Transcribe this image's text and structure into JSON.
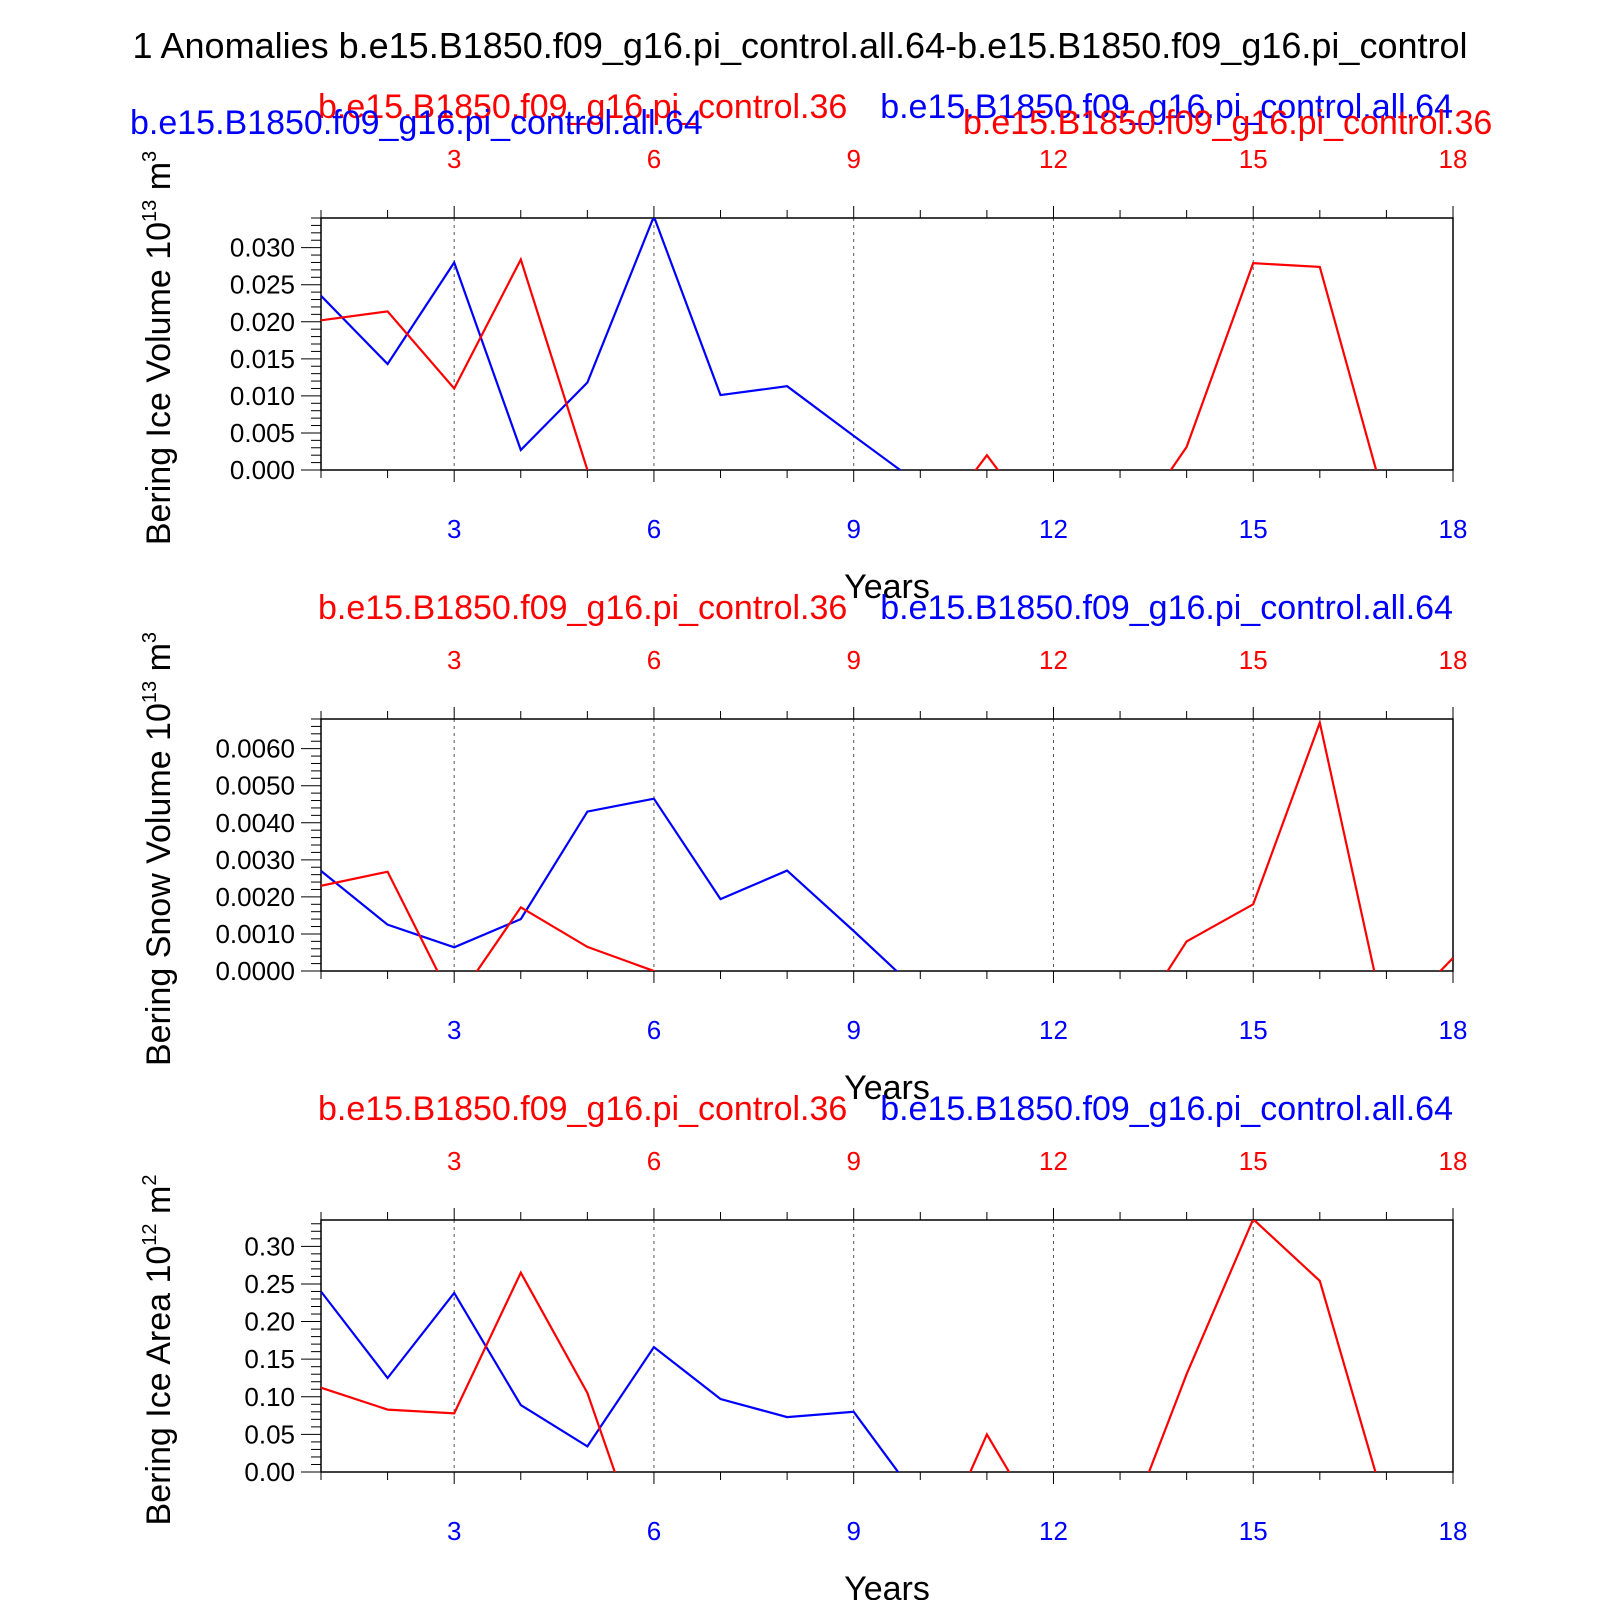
{
  "figure": {
    "title": "1 Anomalies b.e15.B1850.f09_g16.pi_control.all.64-b.e15.B1850.f09_g16.pi_control"
  },
  "colors": {
    "series_a": "#0000ff",
    "series_b": "#ff0000",
    "axis": "#000000",
    "grid": "#555555"
  },
  "chart_data": [
    {
      "type": "line",
      "ylabel": "Bering Ice Volume 10",
      "ylabel_exp": "13",
      "ylabel_unit": "m",
      "ylabel_unit_exp": "3",
      "xlabel": "Years",
      "xlim": [
        1,
        18
      ],
      "ylim": [
        0,
        0.034
      ],
      "yticks": [
        "0.000",
        "0.005",
        "0.010",
        "0.015",
        "0.020",
        "0.025",
        "0.030"
      ],
      "ytick_values": [
        0,
        0.005,
        0.01,
        0.015,
        0.02,
        0.025,
        0.03
      ],
      "xticks": [
        "3",
        "6",
        "9",
        "12",
        "15",
        "18"
      ],
      "xtick_values": [
        3,
        6,
        9,
        12,
        15,
        18
      ],
      "grid": "dashed vertical at x ticks",
      "top_labels": {
        "red_left": "b.e15.B1850.f09_g16.pi_control.36",
        "blue_right": "b.e15.B1850.f09_g16.pi_control.all.64",
        "blue_left": "b.e15.B1850.f09_g16.pi_control.all.64",
        "red_right": "b.e15.B1850.f09_g16.pi_control.36"
      },
      "series": [
        {
          "color": "blue",
          "x": [
            1,
            2,
            3,
            4,
            5,
            6,
            7,
            8,
            9,
            10,
            11,
            12,
            13,
            14,
            15,
            16,
            17,
            18
          ],
          "y": [
            0.0235,
            0.0143,
            0.028,
            0.0027,
            0.0118,
            0.0342,
            0.0101,
            0.0113,
            0.0046,
            -0.002,
            null,
            null,
            null,
            null,
            null,
            null,
            null,
            null
          ]
        },
        {
          "color": "red",
          "x": [
            1,
            2,
            3,
            4,
            5,
            6,
            7,
            8,
            9,
            10,
            11,
            12,
            13,
            14,
            15,
            16,
            17,
            18
          ],
          "y": [
            0.0202,
            0.0214,
            0.011,
            0.0284,
            0.0,
            -0.01,
            null,
            null,
            null,
            -0.01,
            0.002,
            -0.01,
            -0.01,
            0.0031,
            0.0279,
            0.0274,
            -0.005,
            null
          ]
        }
      ]
    },
    {
      "type": "line",
      "ylabel": "Bering Snow Volume 10",
      "ylabel_exp": "13",
      "ylabel_unit": "m",
      "ylabel_unit_exp": "3",
      "xlabel": "Years",
      "xlim": [
        1,
        18
      ],
      "ylim": [
        0,
        0.0068
      ],
      "yticks": [
        "0.0000",
        "0.0010",
        "0.0020",
        "0.0030",
        "0.0040",
        "0.0050",
        "0.0060"
      ],
      "ytick_values": [
        0,
        0.001,
        0.002,
        0.003,
        0.004,
        0.005,
        0.006
      ],
      "xticks": [
        "3",
        "6",
        "9",
        "12",
        "15",
        "18"
      ],
      "xtick_values": [
        3,
        6,
        9,
        12,
        15,
        18
      ],
      "grid": "dashed vertical at x ticks",
      "top_labels": {
        "red_left": "b.e15.B1850.f09_g16.pi_control.36",
        "blue_right": "b.e15.B1850.f09_g16.pi_control.all.64"
      },
      "series": [
        {
          "color": "blue",
          "x": [
            1,
            2,
            3,
            4,
            5,
            6,
            7,
            8,
            9,
            10,
            11,
            12,
            13,
            14,
            15,
            16,
            17,
            18
          ],
          "y": [
            0.0027,
            0.00125,
            0.00064,
            0.0014,
            0.0043,
            0.00465,
            0.00194,
            0.00271,
            0.00108,
            -0.0006,
            null,
            null,
            null,
            null,
            null,
            null,
            null,
            null
          ]
        },
        {
          "color": "red",
          "x": [
            1,
            2,
            3,
            4,
            5,
            6,
            7,
            8,
            9,
            10,
            11,
            12,
            13,
            14,
            15,
            16,
            17,
            18
          ],
          "y": [
            0.0023,
            0.00268,
            -0.0009,
            0.00172,
            0.00065,
            0.0,
            -0.002,
            null,
            null,
            null,
            null,
            null,
            -0.002,
            0.0008,
            0.0018,
            0.0067,
            -0.0015,
            0.00035
          ]
        }
      ]
    },
    {
      "type": "line",
      "ylabel": "Bering Ice Area 10",
      "ylabel_exp": "12",
      "ylabel_unit": "m",
      "ylabel_unit_exp": "2",
      "xlabel": "Years",
      "xlim": [
        1,
        18
      ],
      "ylim": [
        0,
        0.335
      ],
      "yticks": [
        "0.00",
        "0.05",
        "0.10",
        "0.15",
        "0.20",
        "0.25",
        "0.30"
      ],
      "ytick_values": [
        0,
        0.05,
        0.1,
        0.15,
        0.2,
        0.25,
        0.3
      ],
      "xticks": [
        "3",
        "6",
        "9",
        "12",
        "15",
        "18"
      ],
      "xtick_values": [
        3,
        6,
        9,
        12,
        15,
        18
      ],
      "grid": "dashed vertical at x ticks",
      "top_labels": {
        "red_left": "b.e15.B1850.f09_g16.pi_control.36",
        "blue_right": "b.e15.B1850.f09_g16.pi_control.all.64"
      },
      "series": [
        {
          "color": "blue",
          "x": [
            1,
            2,
            3,
            4,
            5,
            6,
            7,
            8,
            9,
            10,
            11,
            12,
            13,
            14,
            15,
            16,
            17,
            18
          ],
          "y": [
            0.24,
            0.125,
            0.238,
            0.089,
            0.034,
            0.166,
            0.097,
            0.073,
            0.08,
            -0.04,
            null,
            null,
            null,
            null,
            null,
            null,
            null,
            null
          ]
        },
        {
          "color": "red",
          "x": [
            1,
            2,
            3,
            4,
            5,
            6,
            7,
            8,
            9,
            10,
            11,
            12,
            13,
            14,
            15,
            16,
            17,
            18
          ],
          "y": [
            0.112,
            0.083,
            0.078,
            0.265,
            0.105,
            -0.15,
            null,
            null,
            null,
            -0.15,
            0.05,
            -0.1,
            -0.1,
            0.13,
            0.336,
            0.254,
            -0.05,
            null
          ]
        }
      ]
    }
  ]
}
